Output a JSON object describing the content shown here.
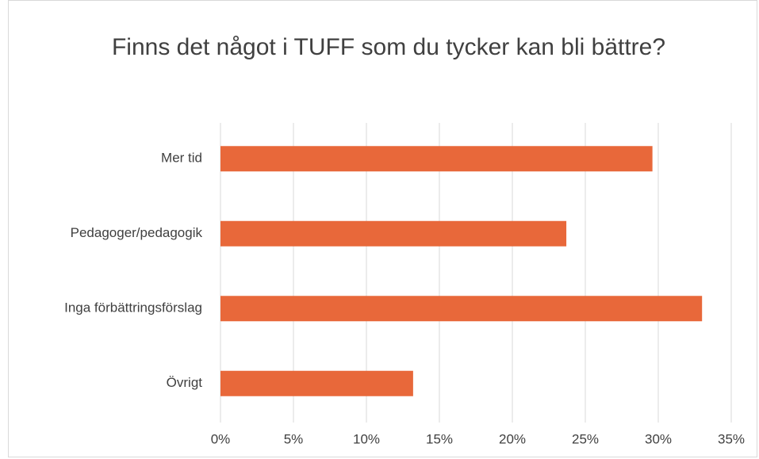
{
  "chart_data": {
    "type": "bar",
    "orientation": "horizontal",
    "title": "Finns det något i TUFF som du tycker kan bli bättre?",
    "categories": [
      "Mer tid",
      "Pedagoger/pedagogik",
      "Inga förbättringsförslag",
      "Övrigt"
    ],
    "values": [
      29.6,
      23.7,
      33.0,
      13.2
    ],
    "color": "#e8683a",
    "xlim": [
      0,
      35
    ],
    "xticks": [
      {
        "value": 0,
        "label": "0%"
      },
      {
        "value": 5,
        "label": "5%"
      },
      {
        "value": 10,
        "label": "10%"
      },
      {
        "value": 15,
        "label": "15%"
      },
      {
        "value": 20,
        "label": "20%"
      },
      {
        "value": 25,
        "label": "25%"
      },
      {
        "value": 30,
        "label": "30%"
      },
      {
        "value": 35,
        "label": "35%"
      }
    ],
    "grid": true
  }
}
